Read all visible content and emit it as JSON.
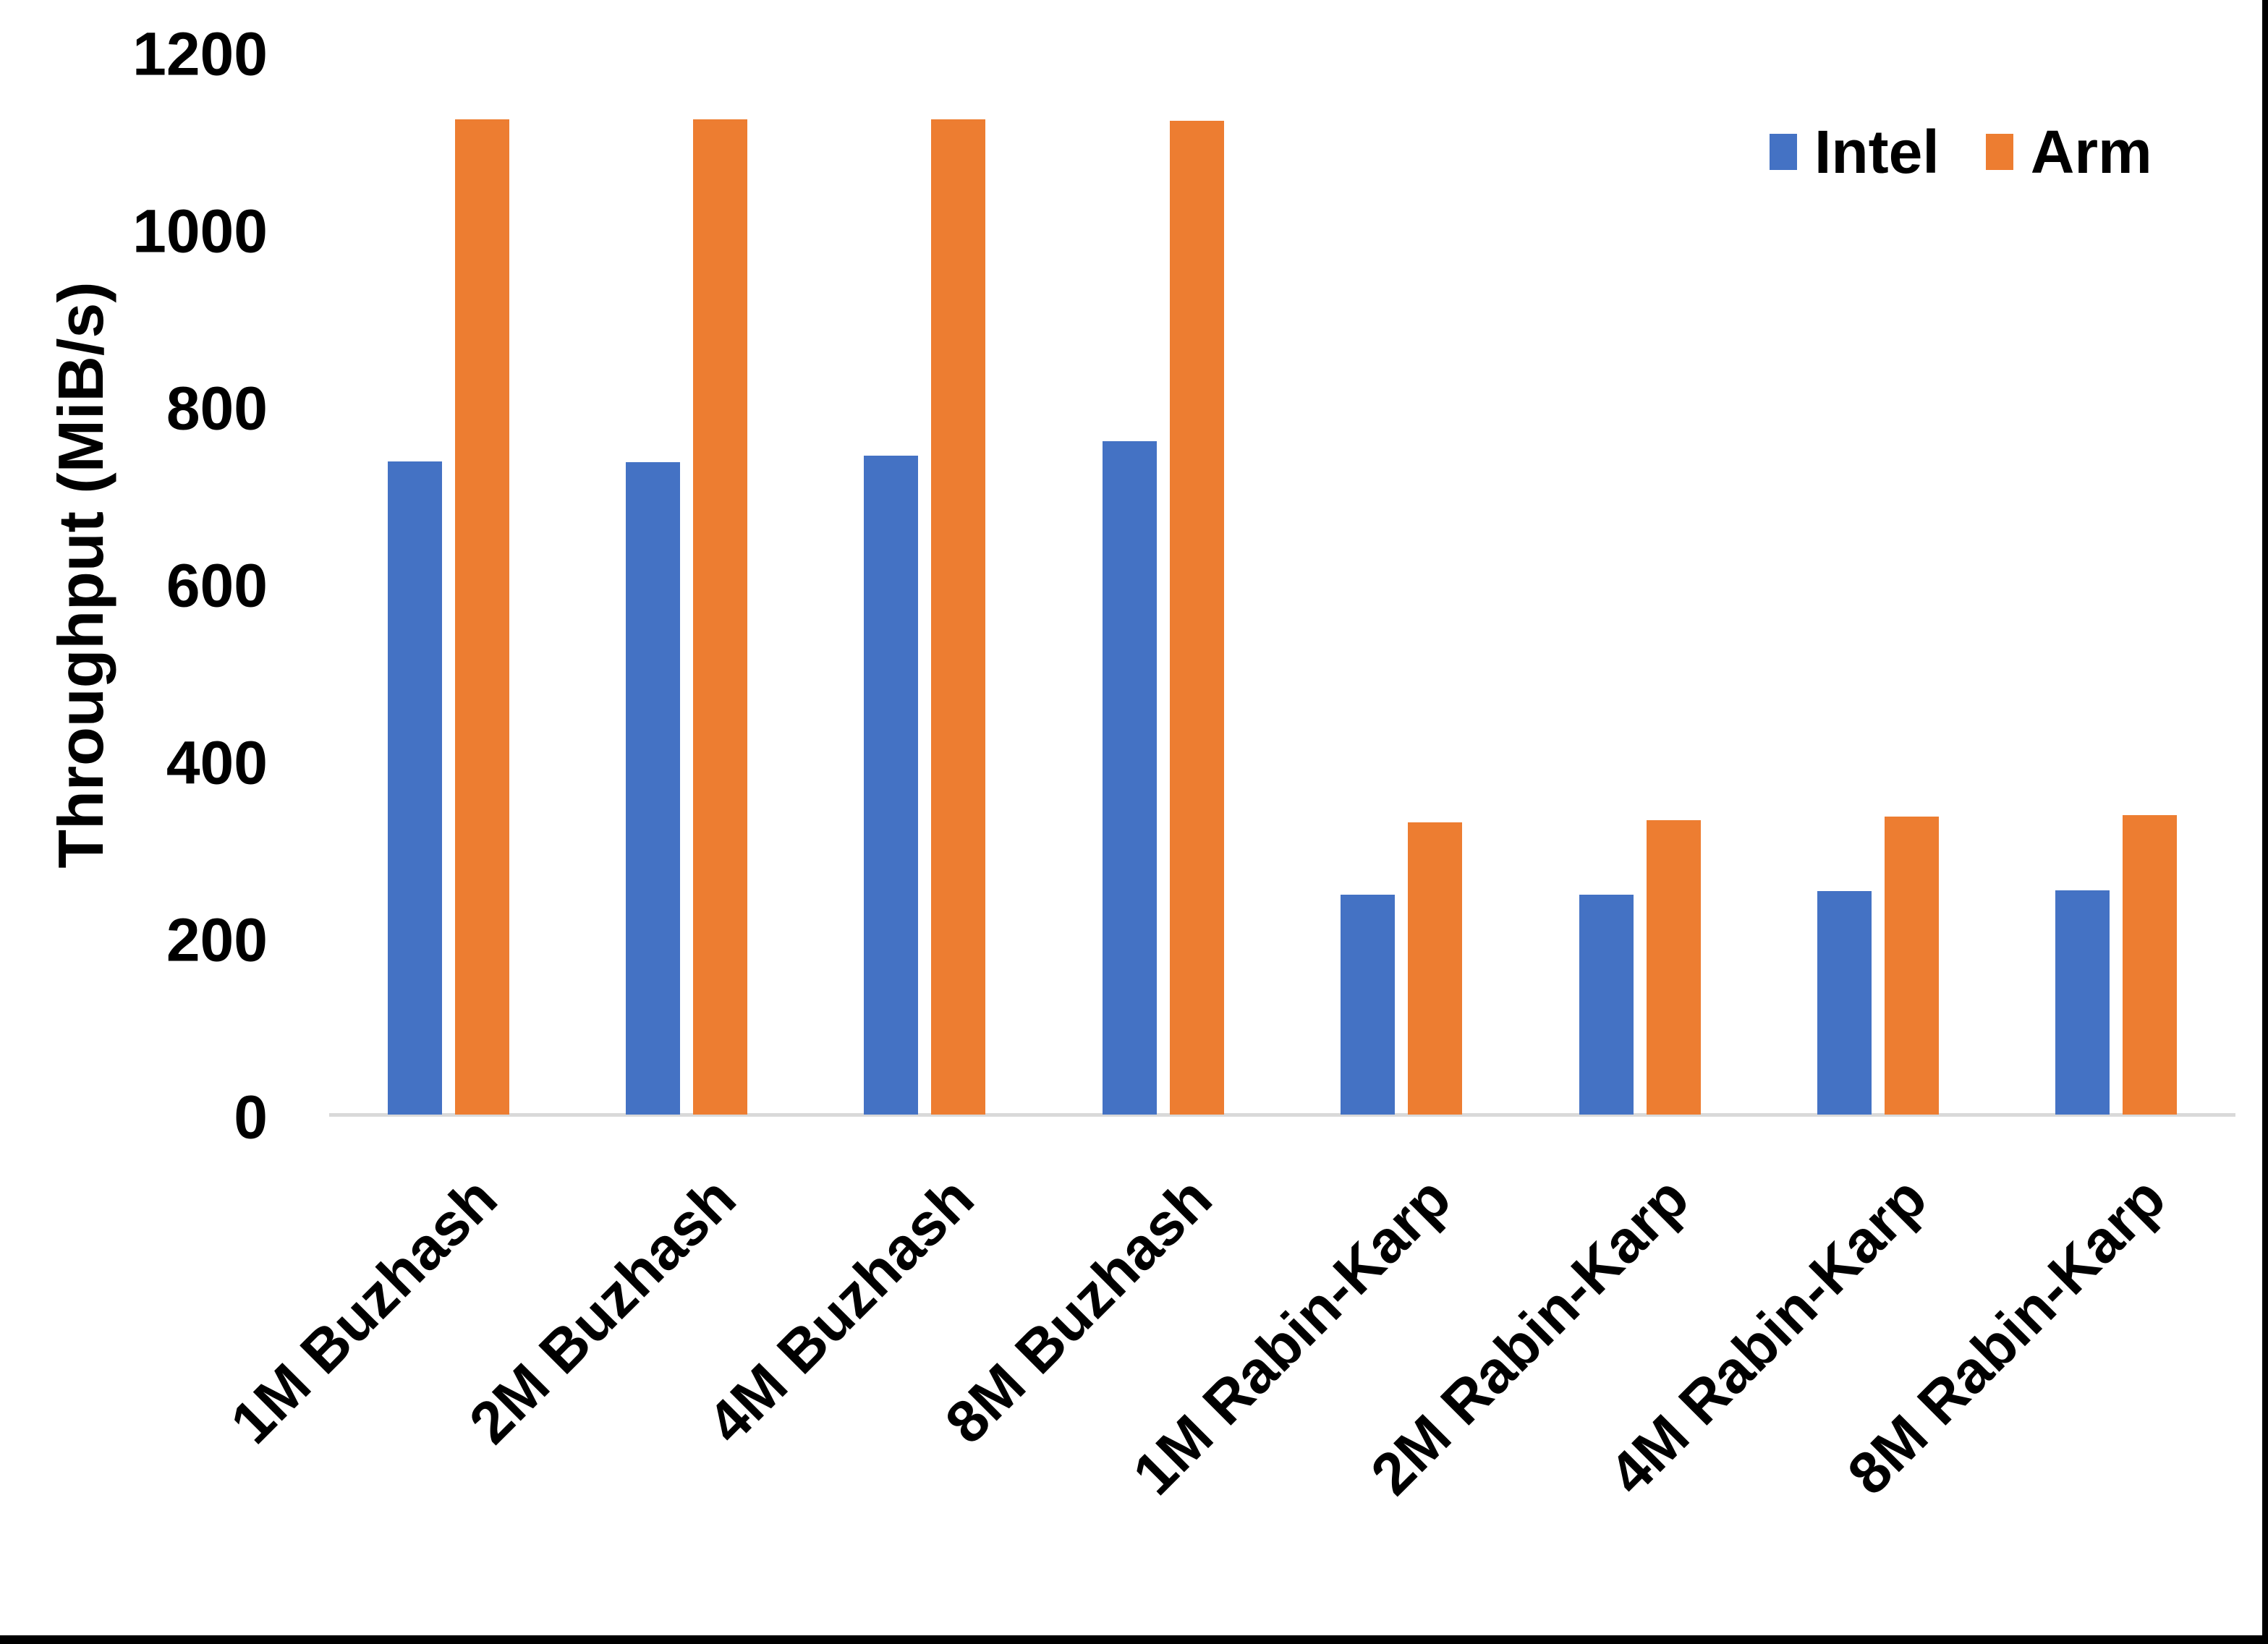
{
  "chart_data": {
    "type": "bar",
    "title": "",
    "ylabel": "Throughput (MiB/s)",
    "xlabel": "",
    "ylim": [
      0,
      1200
    ],
    "ytick_step": 200,
    "yticks": [
      0,
      200,
      400,
      600,
      800,
      1000,
      1200
    ],
    "grid": false,
    "legend_position": "top-right",
    "categories": [
      "1M Buzhash",
      "2M Buzhash",
      "4M Buzhash",
      "8M Buzhash",
      "1M Rabin-Karp",
      "2M Rabin-Karp",
      "4M Rabin-Karp",
      "8M Rabin-Karp"
    ],
    "series": [
      {
        "name": "Intel",
        "color": "#4472C4",
        "values": [
          737,
          736,
          744,
          760,
          248,
          248,
          252,
          253
        ]
      },
      {
        "name": "Arm",
        "color": "#ED7D31",
        "values": [
          1123,
          1123,
          1123,
          1122,
          330,
          332,
          336,
          338
        ]
      }
    ]
  },
  "colors": {
    "axis_line": "#D9D9D9",
    "text": "#000000",
    "background": "#FFFFFF",
    "screen_edge": "#000000"
  }
}
